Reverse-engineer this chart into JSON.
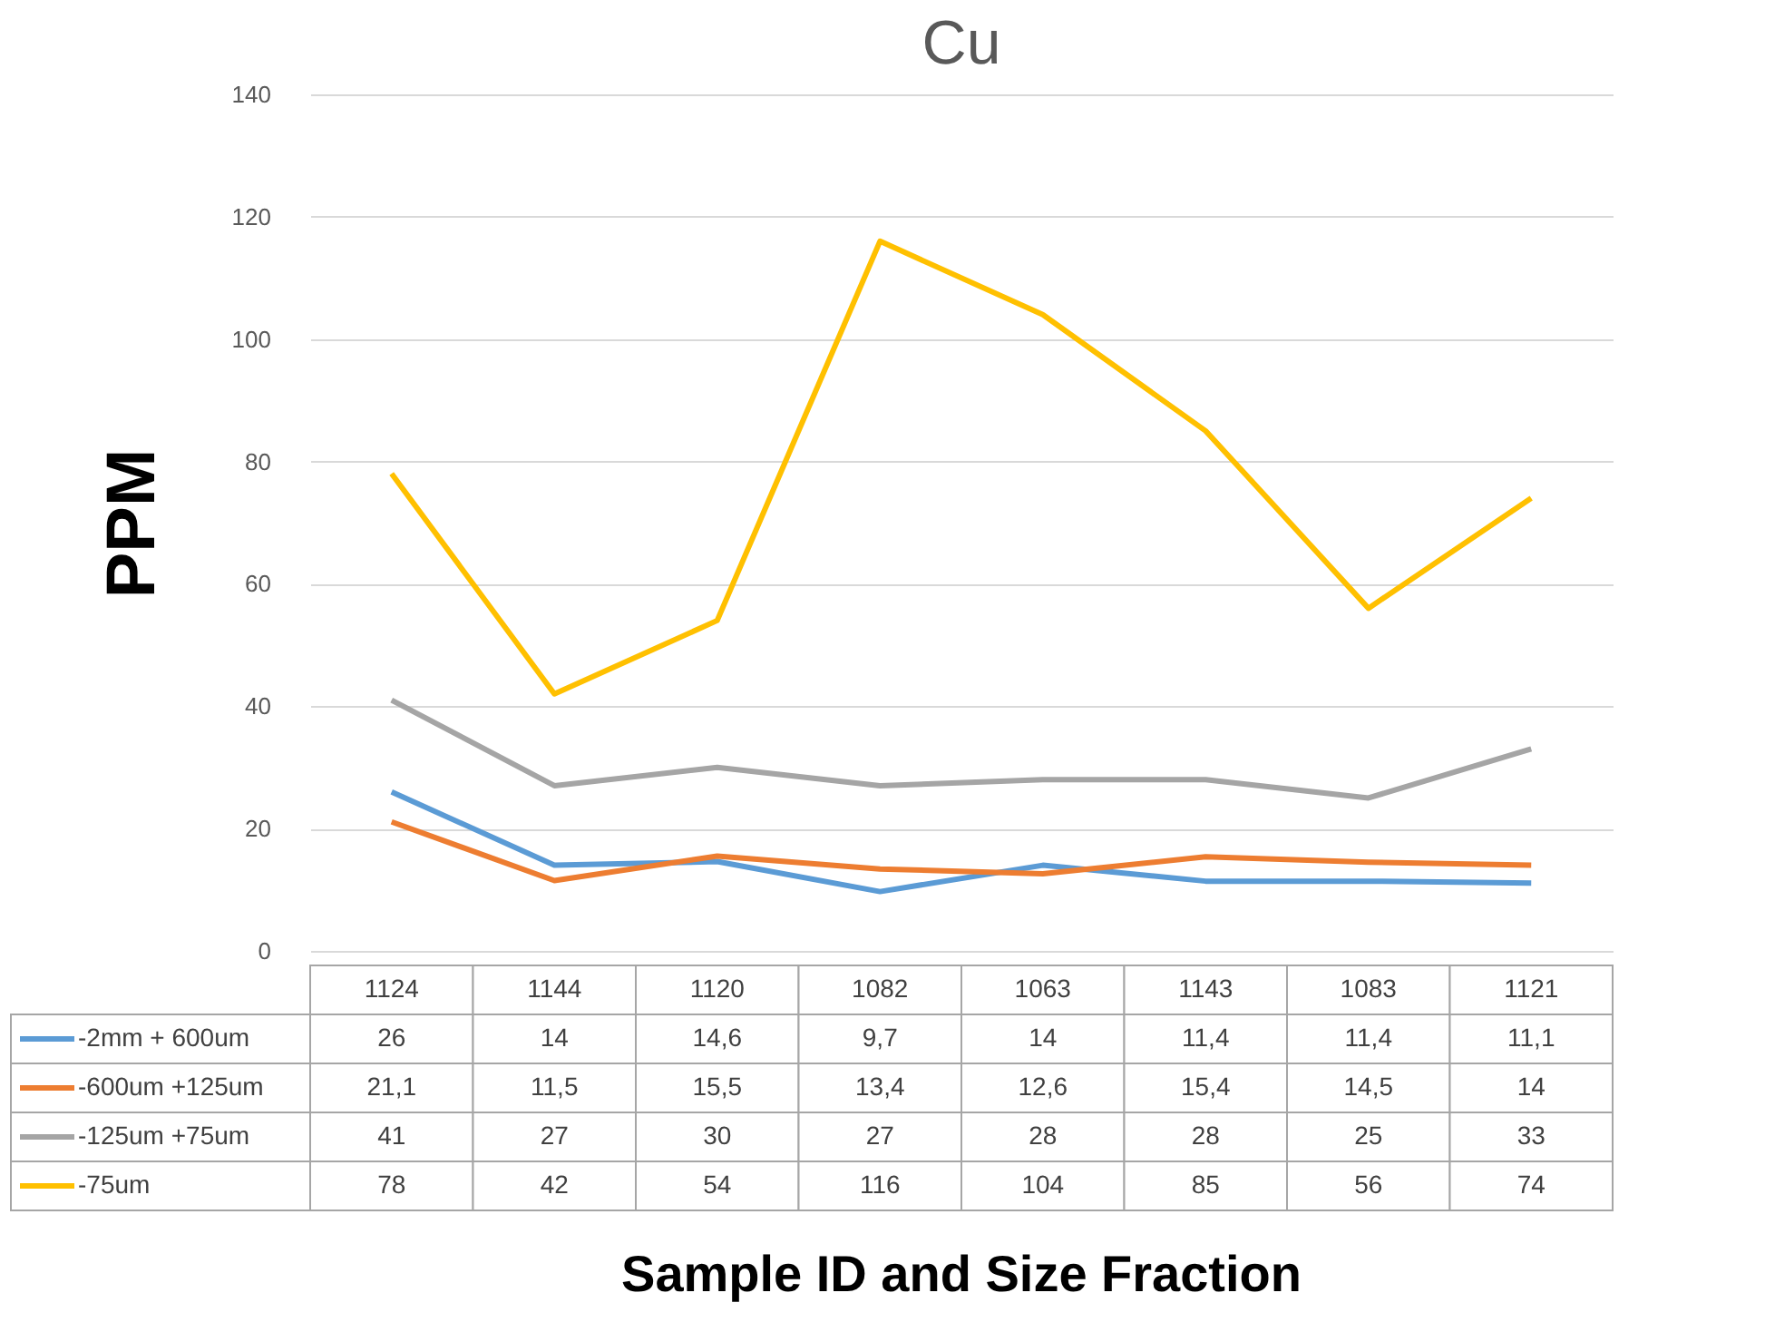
{
  "chart_data": {
    "type": "line",
    "title": "Cu",
    "ylabel": "PPM",
    "xlabel": "Sample  ID and Size Fraction",
    "categories": [
      "1124",
      "1144",
      "1120",
      "1082",
      "1063",
      "1143",
      "1083",
      "1121"
    ],
    "series": [
      {
        "name": "-2mm + 600um",
        "color": "#5b9bd5",
        "values": [
          26,
          14,
          14.6,
          9.7,
          14,
          11.4,
          11.4,
          11.1
        ],
        "value_labels": [
          "26",
          "14",
          "14,6",
          "9,7",
          "14",
          "11,4",
          "11,4",
          "11,1"
        ]
      },
      {
        "name": "-600um +125um",
        "color": "#ed7d31",
        "values": [
          21.1,
          11.5,
          15.5,
          13.4,
          12.6,
          15.4,
          14.5,
          14
        ],
        "value_labels": [
          "21,1",
          "11,5",
          "15,5",
          "13,4",
          "12,6",
          "15,4",
          "14,5",
          "14"
        ]
      },
      {
        "name": "-125um +75um",
        "color": "#a5a5a5",
        "values": [
          41,
          27,
          30,
          27,
          28,
          28,
          25,
          33
        ],
        "value_labels": [
          "41",
          "27",
          "30",
          "27",
          "28",
          "28",
          "25",
          "33"
        ]
      },
      {
        "name": "-75um",
        "color": "#ffc000",
        "values": [
          78,
          42,
          54,
          116,
          104,
          85,
          56,
          74
        ],
        "value_labels": [
          "78",
          "42",
          "54",
          "116",
          "104",
          "85",
          "56",
          "74"
        ]
      }
    ],
    "ylim": [
      0,
      140
    ],
    "yticks": [
      0,
      20,
      40,
      60,
      80,
      100,
      120,
      140
    ],
    "grid": "y",
    "legend": "bottom",
    "marker": "none",
    "line_style": "solid"
  }
}
